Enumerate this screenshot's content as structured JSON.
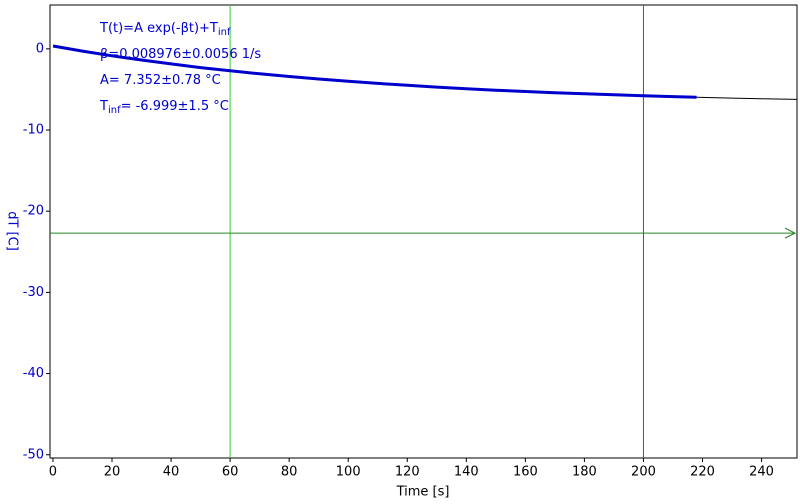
{
  "chart_data": {
    "type": "line",
    "xlabel": "Time [s]",
    "ylabel": "dT [C]",
    "xlim": [
      -1,
      252
    ],
    "ylim": [
      -50.4,
      5.4
    ],
    "xticks": [
      0,
      20,
      40,
      60,
      80,
      100,
      120,
      140,
      160,
      180,
      200,
      220,
      240
    ],
    "yticks": [
      0,
      -10,
      -20,
      -30,
      -40,
      -50
    ],
    "series": [
      {
        "color": "#0000cc",
        "width": 3,
        "x": [
          0,
          10,
          20,
          30,
          40,
          50,
          60,
          70,
          80,
          90,
          100,
          110,
          120,
          130,
          140,
          150,
          160,
          170,
          180,
          190,
          200,
          210,
          218
        ],
        "values": [
          0.35,
          -0.28,
          -0.86,
          -1.38,
          -1.86,
          -2.31,
          -2.71,
          -3.08,
          -3.41,
          -3.72,
          -4.0,
          -4.26,
          -4.49,
          -4.71,
          -4.91,
          -5.09,
          -5.25,
          -5.4,
          -5.54,
          -5.66,
          -5.78,
          -5.88,
          -5.96
        ]
      },
      {
        "color": "#000000",
        "width": 1,
        "x": [
          218,
          230,
          240,
          252
        ],
        "values": [
          -5.96,
          -6.07,
          -6.15,
          -6.23
        ]
      }
    ],
    "cursors": [
      {
        "axis": "x",
        "value": 60,
        "color": "#33cc33"
      },
      {
        "axis": "x",
        "value": 200,
        "color": "#cc2222"
      },
      {
        "axis": "y",
        "value": -22.7,
        "color": "#228822"
      }
    ],
    "annotations": [
      [
        {
          "text": "T(t)=A exp(-βt)+T"
        },
        {
          "text": "inf",
          "sub": true
        }
      ],
      [
        {
          "text": "β=0.008976±0.0056 1/s"
        }
      ],
      [
        {
          "text": "A= 7.352±0.78 °C"
        }
      ],
      [
        {
          "text": "T"
        },
        {
          "text": "inf",
          "sub": true
        },
        {
          "text": "= -6.999±1.5 °C"
        }
      ]
    ]
  }
}
